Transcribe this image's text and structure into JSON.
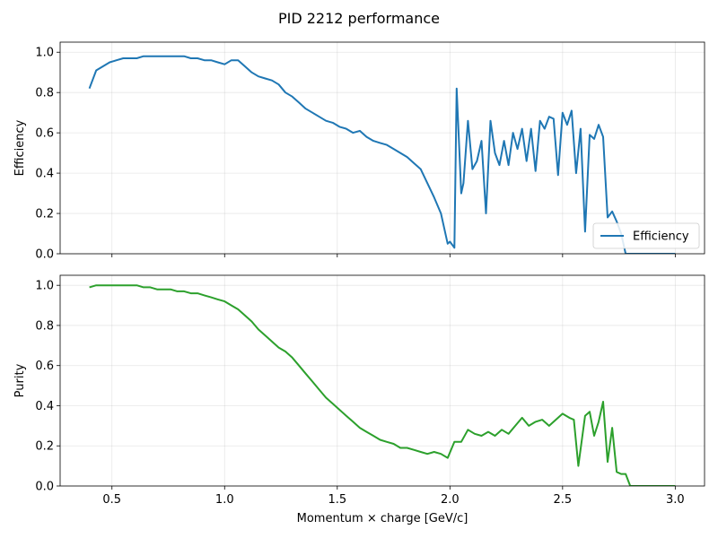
{
  "figure_title": "PID 2212 performance",
  "chart_data": [
    {
      "type": "line",
      "ylabel": "Efficiency",
      "xlabel": "",
      "xlim": [
        0.27,
        3.13
      ],
      "ylim": [
        0.0,
        1.05
      ],
      "xticks": [
        0.5,
        1.0,
        1.5,
        2.0,
        2.5,
        3.0
      ],
      "xtick_labels_visible": false,
      "yticks": [
        0.0,
        0.2,
        0.4,
        0.6,
        0.8,
        1.0
      ],
      "grid": true,
      "legend": {
        "placement": "lower-right",
        "entries": [
          "Efficiency"
        ]
      },
      "series": [
        {
          "name": "Efficiency",
          "color": "#1f77b4",
          "x": [
            0.4,
            0.43,
            0.46,
            0.49,
            0.52,
            0.55,
            0.58,
            0.61,
            0.64,
            0.67,
            0.7,
            0.73,
            0.76,
            0.79,
            0.82,
            0.85,
            0.88,
            0.91,
            0.94,
            0.97,
            1.0,
            1.03,
            1.06,
            1.09,
            1.12,
            1.15,
            1.18,
            1.21,
            1.24,
            1.27,
            1.3,
            1.33,
            1.36,
            1.39,
            1.42,
            1.45,
            1.48,
            1.51,
            1.54,
            1.57,
            1.6,
            1.63,
            1.66,
            1.69,
            1.72,
            1.75,
            1.78,
            1.81,
            1.84,
            1.87,
            1.9,
            1.93,
            1.96,
            1.99,
            2.0,
            2.02,
            2.03,
            2.05,
            2.06,
            2.08,
            2.1,
            2.12,
            2.14,
            2.16,
            2.18,
            2.2,
            2.22,
            2.24,
            2.26,
            2.28,
            2.3,
            2.32,
            2.34,
            2.36,
            2.38,
            2.4,
            2.42,
            2.44,
            2.46,
            2.48,
            2.5,
            2.52,
            2.54,
            2.56,
            2.58,
            2.6,
            2.62,
            2.64,
            2.66,
            2.68,
            2.7,
            2.72,
            2.74,
            2.76,
            2.78,
            2.8,
            2.85,
            2.9,
            2.95,
            3.0
          ],
          "y": [
            0.82,
            0.91,
            0.93,
            0.95,
            0.96,
            0.97,
            0.97,
            0.97,
            0.98,
            0.98,
            0.98,
            0.98,
            0.98,
            0.98,
            0.98,
            0.97,
            0.97,
            0.96,
            0.96,
            0.95,
            0.94,
            0.96,
            0.96,
            0.93,
            0.9,
            0.88,
            0.87,
            0.86,
            0.84,
            0.8,
            0.78,
            0.75,
            0.72,
            0.7,
            0.68,
            0.66,
            0.65,
            0.63,
            0.62,
            0.6,
            0.61,
            0.58,
            0.56,
            0.55,
            0.54,
            0.52,
            0.5,
            0.48,
            0.45,
            0.42,
            0.35,
            0.28,
            0.2,
            0.05,
            0.06,
            0.03,
            0.82,
            0.3,
            0.35,
            0.66,
            0.42,
            0.46,
            0.56,
            0.2,
            0.66,
            0.5,
            0.44,
            0.56,
            0.44,
            0.6,
            0.52,
            0.62,
            0.46,
            0.62,
            0.41,
            0.66,
            0.62,
            0.68,
            0.67,
            0.39,
            0.7,
            0.64,
            0.71,
            0.4,
            0.62,
            0.11,
            0.59,
            0.57,
            0.64,
            0.58,
            0.18,
            0.21,
            0.16,
            0.1,
            0.0,
            0.0,
            0.0,
            0.0,
            0.0,
            0.0
          ]
        }
      ]
    },
    {
      "type": "line",
      "ylabel": "Purity",
      "xlabel": "Momentum × charge [GeV/c]",
      "xlim": [
        0.27,
        3.13
      ],
      "ylim": [
        0.0,
        1.05
      ],
      "xticks": [
        0.5,
        1.0,
        1.5,
        2.0,
        2.5,
        3.0
      ],
      "xtick_labels_visible": true,
      "yticks": [
        0.0,
        0.2,
        0.4,
        0.6,
        0.8,
        1.0
      ],
      "grid": true,
      "legend": null,
      "series": [
        {
          "name": "",
          "color": "#2ca02c",
          "x": [
            0.4,
            0.43,
            0.46,
            0.49,
            0.52,
            0.55,
            0.58,
            0.61,
            0.64,
            0.67,
            0.7,
            0.73,
            0.76,
            0.79,
            0.82,
            0.85,
            0.88,
            0.91,
            0.94,
            0.97,
            1.0,
            1.03,
            1.06,
            1.09,
            1.12,
            1.15,
            1.18,
            1.21,
            1.24,
            1.27,
            1.3,
            1.33,
            1.36,
            1.39,
            1.42,
            1.45,
            1.48,
            1.51,
            1.54,
            1.57,
            1.6,
            1.63,
            1.66,
            1.69,
            1.72,
            1.75,
            1.78,
            1.81,
            1.84,
            1.87,
            1.9,
            1.93,
            1.96,
            1.99,
            2.02,
            2.05,
            2.08,
            2.11,
            2.14,
            2.17,
            2.2,
            2.23,
            2.26,
            2.29,
            2.32,
            2.35,
            2.38,
            2.41,
            2.44,
            2.47,
            2.5,
            2.53,
            2.55,
            2.57,
            2.6,
            2.62,
            2.64,
            2.66,
            2.68,
            2.7,
            2.72,
            2.74,
            2.76,
            2.78,
            2.8,
            2.85,
            2.9,
            2.95,
            3.0
          ],
          "y": [
            0.99,
            1.0,
            1.0,
            1.0,
            1.0,
            1.0,
            1.0,
            1.0,
            0.99,
            0.99,
            0.98,
            0.98,
            0.98,
            0.97,
            0.97,
            0.96,
            0.96,
            0.95,
            0.94,
            0.93,
            0.92,
            0.9,
            0.88,
            0.85,
            0.82,
            0.78,
            0.75,
            0.72,
            0.69,
            0.67,
            0.64,
            0.6,
            0.56,
            0.52,
            0.48,
            0.44,
            0.41,
            0.38,
            0.35,
            0.32,
            0.29,
            0.27,
            0.25,
            0.23,
            0.22,
            0.21,
            0.19,
            0.19,
            0.18,
            0.17,
            0.16,
            0.17,
            0.16,
            0.14,
            0.22,
            0.22,
            0.28,
            0.26,
            0.25,
            0.27,
            0.25,
            0.28,
            0.26,
            0.3,
            0.34,
            0.3,
            0.32,
            0.33,
            0.3,
            0.33,
            0.36,
            0.34,
            0.33,
            0.1,
            0.35,
            0.37,
            0.25,
            0.32,
            0.42,
            0.12,
            0.29,
            0.07,
            0.06,
            0.06,
            0.0,
            0.0,
            0.0,
            0.0,
            0.0
          ]
        }
      ]
    }
  ]
}
